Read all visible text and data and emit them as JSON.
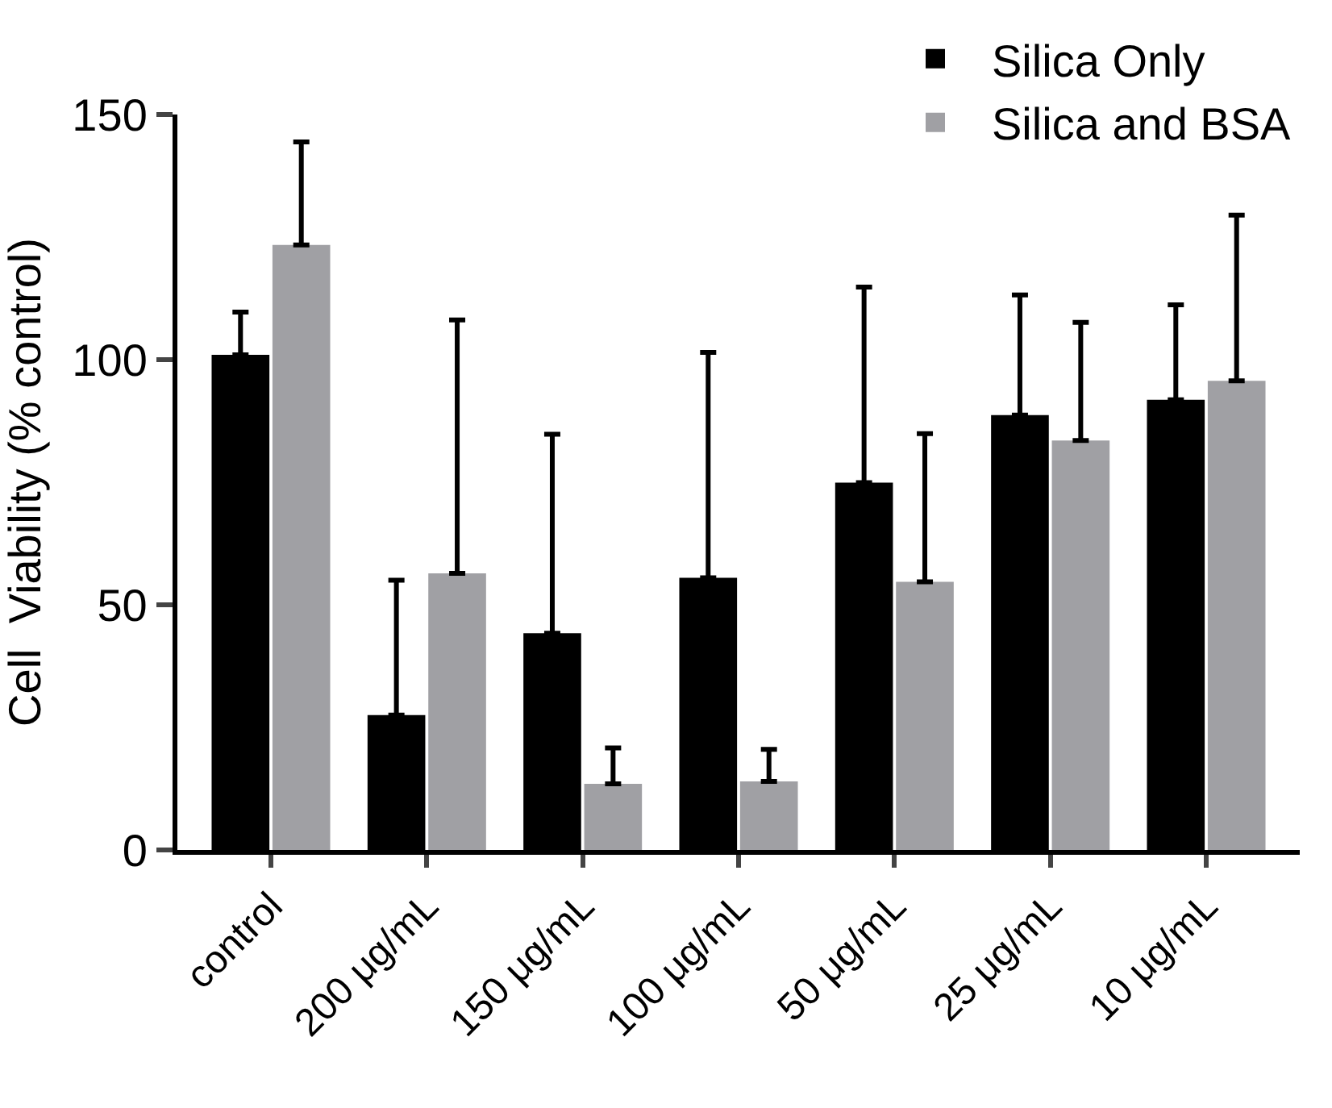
{
  "chart_data": {
    "type": "bar",
    "ylabel": "Cell  Viability (% control)",
    "categories": [
      "control",
      "200 μg/mL",
      "150 μg/mL",
      "100 μg/mL",
      "50 μg/mL",
      "25 μg/mL",
      "10 μg/mL"
    ],
    "series": [
      {
        "name": "Silica Only",
        "color": "#000000",
        "values": [
          101,
          27.5,
          44.2,
          55.5,
          74.9,
          88.7,
          91.8
        ],
        "errors": [
          [
            101,
            109.7
          ],
          [
            27.5,
            55
          ],
          [
            44.2,
            84.8
          ],
          [
            55.5,
            101.5
          ],
          [
            74.9,
            114.8
          ],
          [
            88.7,
            113.2
          ],
          [
            91.8,
            111.2
          ]
        ]
      },
      {
        "name": "Silica and BSA",
        "color": "#a0a0a4",
        "values": [
          123.4,
          56.4,
          13.5,
          14,
          54.7,
          83.5,
          95.7
        ],
        "errors": [
          [
            123.4,
            144.4
          ],
          [
            56.4,
            108.1
          ],
          [
            13.5,
            20.8
          ],
          [
            14,
            20.5
          ],
          [
            54.7,
            84.9
          ],
          [
            83.5,
            107.6
          ],
          [
            95.7,
            129.5
          ]
        ]
      }
    ],
    "ylim": [
      0,
      150
    ],
    "yticks": [
      0,
      50,
      100,
      150
    ],
    "grid": false,
    "legend": "top right"
  }
}
